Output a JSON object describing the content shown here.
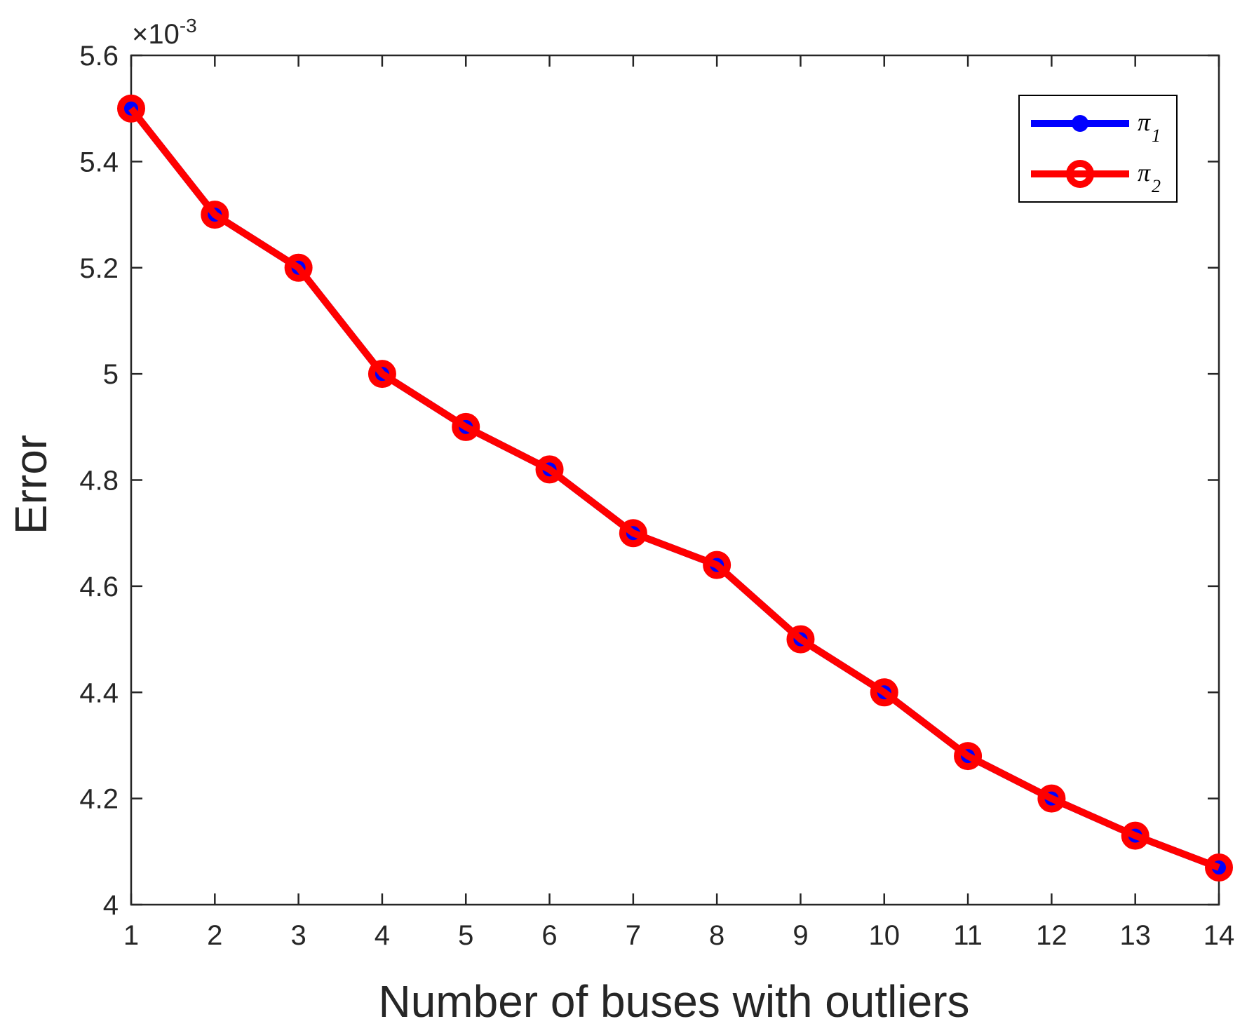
{
  "chart_data": {
    "type": "line",
    "xlabel": "Number of buses with outliers",
    "ylabel": "Error",
    "exponent_base": "×10",
    "exponent_power": "-3",
    "x": [
      1,
      2,
      3,
      4,
      5,
      6,
      7,
      8,
      9,
      10,
      11,
      12,
      13,
      14
    ],
    "xlim": [
      1,
      14
    ],
    "ylim": [
      4.0,
      5.6
    ],
    "xticks": [
      "1",
      "2",
      "3",
      "4",
      "5",
      "6",
      "7",
      "8",
      "9",
      "10",
      "11",
      "12",
      "13",
      "14"
    ],
    "yticks": [
      "4",
      "4.2",
      "4.4",
      "4.6",
      "4.8",
      "5",
      "5.2",
      "5.4",
      "5.6"
    ],
    "ytick_values": [
      4.0,
      4.2,
      4.4,
      4.6,
      4.8,
      5.0,
      5.2,
      5.4,
      5.6
    ],
    "series": [
      {
        "name": "π",
        "subscript": "1",
        "color": "#0000ff",
        "marker": "filled-circle",
        "values": [
          5.5,
          5.3,
          5.2,
          5.0,
          4.9,
          4.82,
          4.7,
          4.64,
          4.5,
          4.4,
          4.28,
          4.2,
          4.13,
          4.07
        ]
      },
      {
        "name": "π",
        "subscript": "2",
        "color": "#ff0000",
        "marker": "open-circle",
        "values": [
          5.5,
          5.3,
          5.2,
          5.0,
          4.9,
          4.82,
          4.7,
          4.64,
          4.5,
          4.4,
          4.28,
          4.2,
          4.13,
          4.07
        ]
      }
    ],
    "legend_position": "top-right",
    "grid": false,
    "box": true
  }
}
